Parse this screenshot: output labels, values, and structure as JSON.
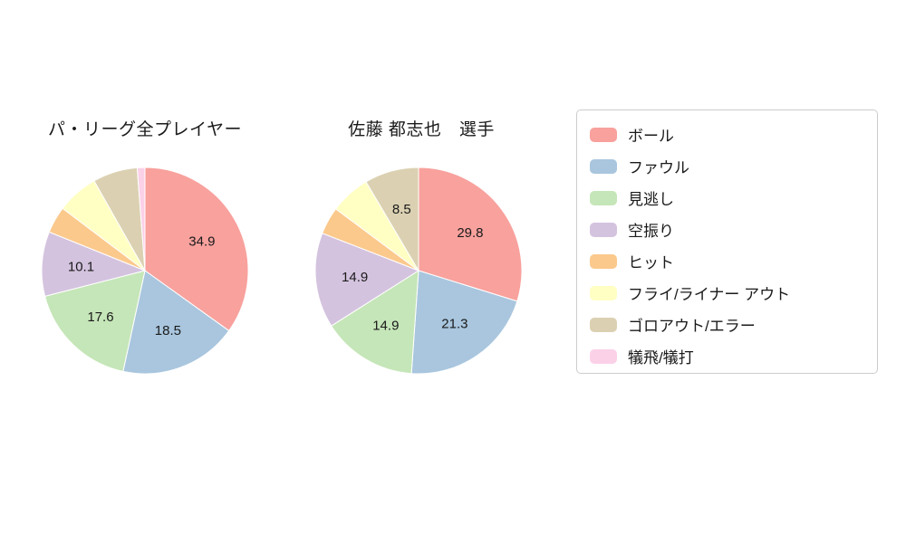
{
  "palette": [
    "#f8a19d",
    "#a9c6de",
    "#c5e6b8",
    "#d4c3df",
    "#fbc98c",
    "#ffffc4",
    "#dbd1b2",
    "#fbd1e8"
  ],
  "legend": {
    "position": "right",
    "items": [
      {
        "label": "ボール",
        "color": "#f8a19d"
      },
      {
        "label": "ファウル",
        "color": "#a9c6de"
      },
      {
        "label": "見逃し",
        "color": "#c5e6b8"
      },
      {
        "label": "空振り",
        "color": "#d4c3df"
      },
      {
        "label": "ヒット",
        "color": "#fbc98c"
      },
      {
        "label": "フライ/ライナー アウト",
        "color": "#ffffc4"
      },
      {
        "label": "ゴロアウト/エラー",
        "color": "#dbd1b2"
      },
      {
        "label": "犠飛/犠打",
        "color": "#fbd1e8"
      }
    ]
  },
  "chart_data": [
    {
      "type": "pie",
      "title": "パ・リーグ全プレイヤー",
      "start_angle_deg": 90,
      "direction": "clockwise",
      "slices": [
        {
          "name": "ボール",
          "value": 34.9,
          "label": "34.9"
        },
        {
          "name": "ファウル",
          "value": 18.5,
          "label": "18.5"
        },
        {
          "name": "見逃し",
          "value": 17.6,
          "label": "17.6"
        },
        {
          "name": "空振り",
          "value": 10.1,
          "label": "10.1"
        },
        {
          "name": "ヒット",
          "value": 4.2,
          "label": null
        },
        {
          "name": "フライ/ライナー アウト",
          "value": 6.5,
          "label": null
        },
        {
          "name": "ゴロアウト/エラー",
          "value": 7.0,
          "label": null
        },
        {
          "name": "犠飛/犠打",
          "value": 1.2,
          "label": null
        }
      ]
    },
    {
      "type": "pie",
      "title": "佐藤 都志也　選手",
      "start_angle_deg": 90,
      "direction": "clockwise",
      "slices": [
        {
          "name": "ボール",
          "value": 29.8,
          "label": "29.8"
        },
        {
          "name": "ファウル",
          "value": 21.3,
          "label": "21.3"
        },
        {
          "name": "見逃し",
          "value": 14.9,
          "label": "14.9"
        },
        {
          "name": "空振り",
          "value": 14.9,
          "label": "14.9"
        },
        {
          "name": "ヒット",
          "value": 4.3,
          "label": null
        },
        {
          "name": "フライ/ライナー アウト",
          "value": 6.3,
          "label": null
        },
        {
          "name": "ゴロアウト/エラー",
          "value": 8.5,
          "label": "8.5"
        },
        {
          "name": "犠飛/犠打",
          "value": 0.0,
          "label": null
        }
      ]
    }
  ]
}
